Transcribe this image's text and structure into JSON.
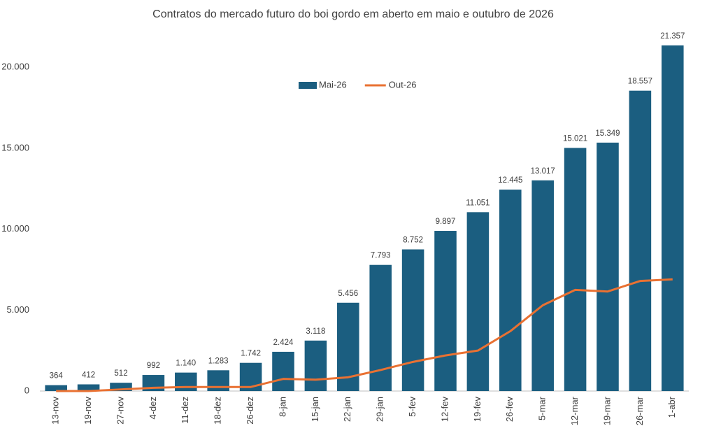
{
  "chart_data": {
    "type": "bar",
    "title": "Contratos do mercado futuro do boi gordo em aberto em maio  e outubro de 2026",
    "categories": [
      "13-nov",
      "19-nov",
      "27-nov",
      "4-dez",
      "11-dez",
      "18-dez",
      "26-dez",
      "8-jan",
      "15-jan",
      "22-jan",
      "29-jan",
      "5-fev",
      "12-fev",
      "19-fev",
      "26-fev",
      "5-mar",
      "12-mar",
      "19-mar",
      "26-mar",
      "1-abr"
    ],
    "series": [
      {
        "name": "Mai-26",
        "type": "bar",
        "color": "#1b5e80",
        "values": [
          364,
          412,
          512,
          992,
          1140,
          1283,
          1742,
          2424,
          3118,
          5456,
          7793,
          8752,
          9897,
          11051,
          12445,
          13017,
          15021,
          15349,
          18557,
          21357
        ],
        "value_labels": [
          "364",
          "412",
          "512",
          "992",
          "1.140",
          "1.283",
          "1.742",
          "2.424",
          "3.118",
          "5.456",
          "7.793",
          "8.752",
          "9.897",
          "11.051",
          "12.445",
          "13.017",
          "15.021",
          "15.349",
          "18.557",
          "21.357"
        ]
      },
      {
        "name": "Out-26",
        "type": "line",
        "color": "#e97132",
        "values": [
          0,
          0,
          100,
          200,
          250,
          250,
          250,
          750,
          700,
          850,
          1300,
          1800,
          2200,
          2500,
          3700,
          5300,
          6250,
          6150,
          6800,
          6900
        ]
      }
    ],
    "ylim": [
      0,
      22000
    ],
    "yticks": [
      0,
      {
        "value": 5000,
        "label": "5.000"
      },
      {
        "value": 10000,
        "label": "10.000"
      },
      {
        "value": 15000,
        "label": "15.000"
      },
      {
        "value": 20000,
        "label": "20.000"
      }
    ],
    "grid": false,
    "legend": "top"
  }
}
